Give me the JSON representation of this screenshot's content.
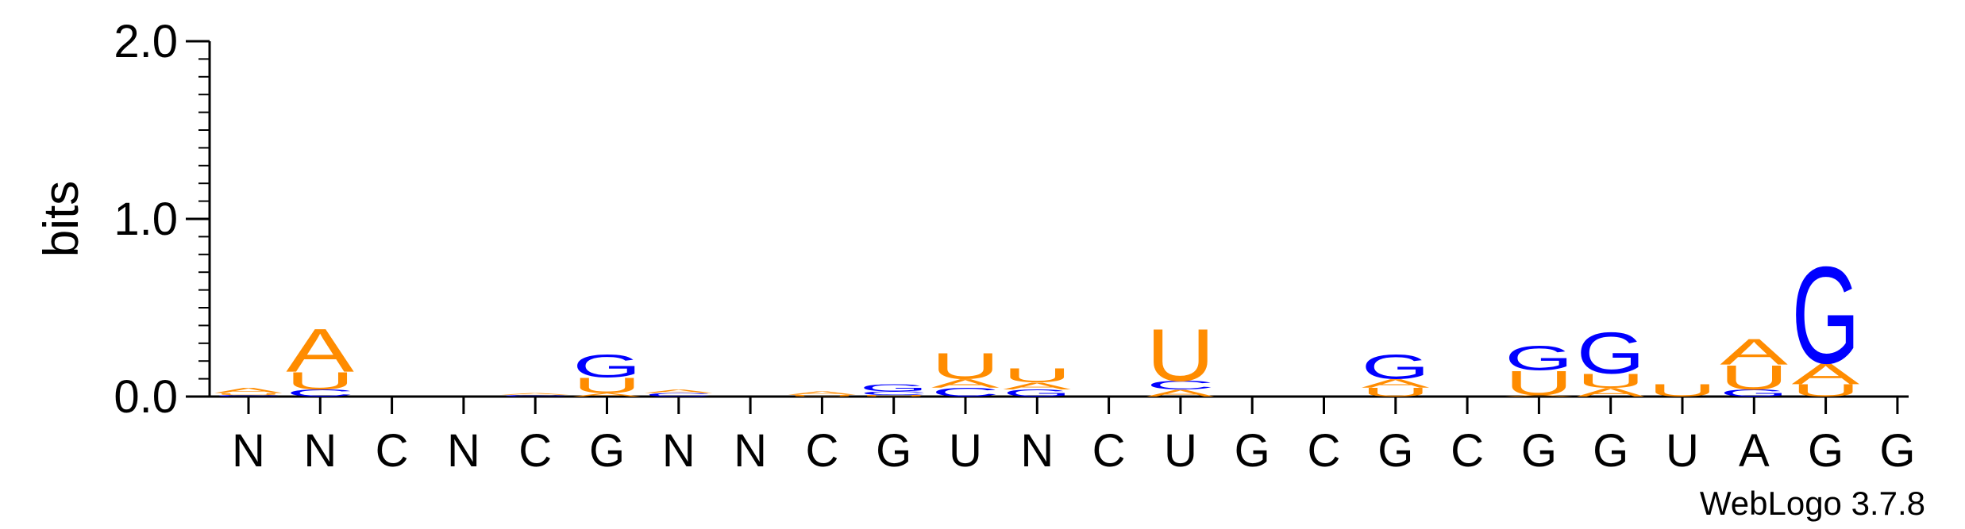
{
  "chart_data": {
    "type": "sequence-logo",
    "ylabel": "bits",
    "ylim": [
      0,
      2.0
    ],
    "yticks": [
      "0.0",
      "1.0",
      "2.0"
    ],
    "credit": "WebLogo 3.7.8",
    "colors": {
      "A": "#ff8c00",
      "U": "#ff8c00",
      "G": "#0000ff",
      "C": "#0000ff"
    },
    "positions": [
      {
        "label": "N",
        "stack": [
          {
            "letter": "C",
            "bits": 0.01
          },
          {
            "letter": "U",
            "bits": 0.01
          },
          {
            "letter": "A",
            "bits": 0.03
          }
        ]
      },
      {
        "label": "N",
        "stack": [
          {
            "letter": "C",
            "bits": 0.04
          },
          {
            "letter": "U",
            "bits": 0.1
          },
          {
            "letter": "A",
            "bits": 0.25
          }
        ]
      },
      {
        "label": "C",
        "stack": []
      },
      {
        "label": "N",
        "stack": []
      },
      {
        "label": "C",
        "stack": [
          {
            "letter": "C",
            "bits": 0.01
          },
          {
            "letter": "A",
            "bits": 0.01
          }
        ]
      },
      {
        "label": "G",
        "stack": [
          {
            "letter": "A",
            "bits": 0.02
          },
          {
            "letter": "U",
            "bits": 0.09
          },
          {
            "letter": "G",
            "bits": 0.13
          }
        ]
      },
      {
        "label": "N",
        "stack": [
          {
            "letter": "C",
            "bits": 0.02
          },
          {
            "letter": "A",
            "bits": 0.02
          }
        ]
      },
      {
        "label": "N",
        "stack": []
      },
      {
        "label": "C",
        "stack": [
          {
            "letter": "U",
            "bits": 0.01
          },
          {
            "letter": "A",
            "bits": 0.02
          }
        ]
      },
      {
        "label": "G",
        "stack": [
          {
            "letter": "U",
            "bits": 0.01
          },
          {
            "letter": "C",
            "bits": 0.02
          },
          {
            "letter": "G",
            "bits": 0.04
          }
        ]
      },
      {
        "label": "U",
        "stack": [
          {
            "letter": "C",
            "bits": 0.05
          },
          {
            "letter": "A",
            "bits": 0.05
          },
          {
            "letter": "U",
            "bits": 0.15
          }
        ]
      },
      {
        "label": "N",
        "stack": [
          {
            "letter": "G",
            "bits": 0.04
          },
          {
            "letter": "A",
            "bits": 0.04
          },
          {
            "letter": "U",
            "bits": 0.08
          }
        ]
      },
      {
        "label": "C",
        "stack": []
      },
      {
        "label": "U",
        "stack": [
          {
            "letter": "A",
            "bits": 0.04
          },
          {
            "letter": "C",
            "bits": 0.05
          },
          {
            "letter": "U",
            "bits": 0.3
          }
        ]
      },
      {
        "label": "G",
        "stack": []
      },
      {
        "label": "C",
        "stack": []
      },
      {
        "label": "G",
        "stack": [
          {
            "letter": "U",
            "bits": 0.05
          },
          {
            "letter": "A",
            "bits": 0.05
          },
          {
            "letter": "G",
            "bits": 0.14
          }
        ]
      },
      {
        "label": "C",
        "stack": []
      },
      {
        "label": "G",
        "stack": [
          {
            "letter": "A",
            "bits": 0.01
          },
          {
            "letter": "U",
            "bits": 0.14
          },
          {
            "letter": "G",
            "bits": 0.14
          }
        ]
      },
      {
        "label": "G",
        "stack": [
          {
            "letter": "A",
            "bits": 0.05
          },
          {
            "letter": "U",
            "bits": 0.08
          },
          {
            "letter": "G",
            "bits": 0.24
          }
        ]
      },
      {
        "label": "U",
        "stack": [
          {
            "letter": "U",
            "bits": 0.07
          }
        ]
      },
      {
        "label": "A",
        "stack": [
          {
            "letter": "G",
            "bits": 0.04
          },
          {
            "letter": "U",
            "bits": 0.14
          },
          {
            "letter": "A",
            "bits": 0.15
          }
        ]
      },
      {
        "label": "G",
        "stack": [
          {
            "letter": "U",
            "bits": 0.07
          },
          {
            "letter": "A",
            "bits": 0.12
          },
          {
            "letter": "G",
            "bits": 0.56
          }
        ]
      },
      {
        "label": "G",
        "stack": []
      }
    ]
  }
}
